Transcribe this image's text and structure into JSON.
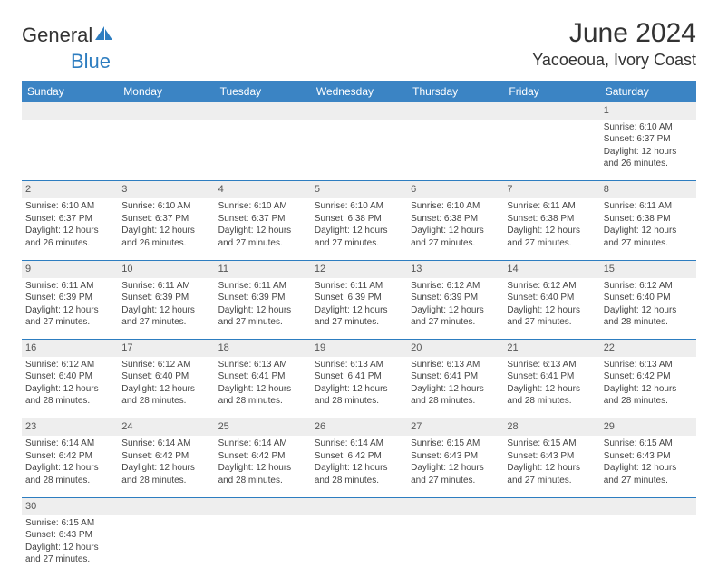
{
  "brand": {
    "part1": "General",
    "part2": "Blue"
  },
  "title": "June 2024",
  "location": "Yacoeoua, Ivory Coast",
  "colors": {
    "header_bg": "#3b84c4",
    "header_text": "#ffffff",
    "daynum_bg": "#eeeeee",
    "border": "#2d7dc0"
  },
  "dayNames": [
    "Sunday",
    "Monday",
    "Tuesday",
    "Wednesday",
    "Thursday",
    "Friday",
    "Saturday"
  ],
  "weeks": [
    [
      null,
      null,
      null,
      null,
      null,
      null,
      {
        "n": "1",
        "sr": "Sunrise: 6:10 AM",
        "ss": "Sunset: 6:37 PM",
        "d1": "Daylight: 12 hours",
        "d2": "and 26 minutes."
      }
    ],
    [
      {
        "n": "2",
        "sr": "Sunrise: 6:10 AM",
        "ss": "Sunset: 6:37 PM",
        "d1": "Daylight: 12 hours",
        "d2": "and 26 minutes."
      },
      {
        "n": "3",
        "sr": "Sunrise: 6:10 AM",
        "ss": "Sunset: 6:37 PM",
        "d1": "Daylight: 12 hours",
        "d2": "and 26 minutes."
      },
      {
        "n": "4",
        "sr": "Sunrise: 6:10 AM",
        "ss": "Sunset: 6:37 PM",
        "d1": "Daylight: 12 hours",
        "d2": "and 27 minutes."
      },
      {
        "n": "5",
        "sr": "Sunrise: 6:10 AM",
        "ss": "Sunset: 6:38 PM",
        "d1": "Daylight: 12 hours",
        "d2": "and 27 minutes."
      },
      {
        "n": "6",
        "sr": "Sunrise: 6:10 AM",
        "ss": "Sunset: 6:38 PM",
        "d1": "Daylight: 12 hours",
        "d2": "and 27 minutes."
      },
      {
        "n": "7",
        "sr": "Sunrise: 6:11 AM",
        "ss": "Sunset: 6:38 PM",
        "d1": "Daylight: 12 hours",
        "d2": "and 27 minutes."
      },
      {
        "n": "8",
        "sr": "Sunrise: 6:11 AM",
        "ss": "Sunset: 6:38 PM",
        "d1": "Daylight: 12 hours",
        "d2": "and 27 minutes."
      }
    ],
    [
      {
        "n": "9",
        "sr": "Sunrise: 6:11 AM",
        "ss": "Sunset: 6:39 PM",
        "d1": "Daylight: 12 hours",
        "d2": "and 27 minutes."
      },
      {
        "n": "10",
        "sr": "Sunrise: 6:11 AM",
        "ss": "Sunset: 6:39 PM",
        "d1": "Daylight: 12 hours",
        "d2": "and 27 minutes."
      },
      {
        "n": "11",
        "sr": "Sunrise: 6:11 AM",
        "ss": "Sunset: 6:39 PM",
        "d1": "Daylight: 12 hours",
        "d2": "and 27 minutes."
      },
      {
        "n": "12",
        "sr": "Sunrise: 6:11 AM",
        "ss": "Sunset: 6:39 PM",
        "d1": "Daylight: 12 hours",
        "d2": "and 27 minutes."
      },
      {
        "n": "13",
        "sr": "Sunrise: 6:12 AM",
        "ss": "Sunset: 6:39 PM",
        "d1": "Daylight: 12 hours",
        "d2": "and 27 minutes."
      },
      {
        "n": "14",
        "sr": "Sunrise: 6:12 AM",
        "ss": "Sunset: 6:40 PM",
        "d1": "Daylight: 12 hours",
        "d2": "and 27 minutes."
      },
      {
        "n": "15",
        "sr": "Sunrise: 6:12 AM",
        "ss": "Sunset: 6:40 PM",
        "d1": "Daylight: 12 hours",
        "d2": "and 28 minutes."
      }
    ],
    [
      {
        "n": "16",
        "sr": "Sunrise: 6:12 AM",
        "ss": "Sunset: 6:40 PM",
        "d1": "Daylight: 12 hours",
        "d2": "and 28 minutes."
      },
      {
        "n": "17",
        "sr": "Sunrise: 6:12 AM",
        "ss": "Sunset: 6:40 PM",
        "d1": "Daylight: 12 hours",
        "d2": "and 28 minutes."
      },
      {
        "n": "18",
        "sr": "Sunrise: 6:13 AM",
        "ss": "Sunset: 6:41 PM",
        "d1": "Daylight: 12 hours",
        "d2": "and 28 minutes."
      },
      {
        "n": "19",
        "sr": "Sunrise: 6:13 AM",
        "ss": "Sunset: 6:41 PM",
        "d1": "Daylight: 12 hours",
        "d2": "and 28 minutes."
      },
      {
        "n": "20",
        "sr": "Sunrise: 6:13 AM",
        "ss": "Sunset: 6:41 PM",
        "d1": "Daylight: 12 hours",
        "d2": "and 28 minutes."
      },
      {
        "n": "21",
        "sr": "Sunrise: 6:13 AM",
        "ss": "Sunset: 6:41 PM",
        "d1": "Daylight: 12 hours",
        "d2": "and 28 minutes."
      },
      {
        "n": "22",
        "sr": "Sunrise: 6:13 AM",
        "ss": "Sunset: 6:42 PM",
        "d1": "Daylight: 12 hours",
        "d2": "and 28 minutes."
      }
    ],
    [
      {
        "n": "23",
        "sr": "Sunrise: 6:14 AM",
        "ss": "Sunset: 6:42 PM",
        "d1": "Daylight: 12 hours",
        "d2": "and 28 minutes."
      },
      {
        "n": "24",
        "sr": "Sunrise: 6:14 AM",
        "ss": "Sunset: 6:42 PM",
        "d1": "Daylight: 12 hours",
        "d2": "and 28 minutes."
      },
      {
        "n": "25",
        "sr": "Sunrise: 6:14 AM",
        "ss": "Sunset: 6:42 PM",
        "d1": "Daylight: 12 hours",
        "d2": "and 28 minutes."
      },
      {
        "n": "26",
        "sr": "Sunrise: 6:14 AM",
        "ss": "Sunset: 6:42 PM",
        "d1": "Daylight: 12 hours",
        "d2": "and 28 minutes."
      },
      {
        "n": "27",
        "sr": "Sunrise: 6:15 AM",
        "ss": "Sunset: 6:43 PM",
        "d1": "Daylight: 12 hours",
        "d2": "and 27 minutes."
      },
      {
        "n": "28",
        "sr": "Sunrise: 6:15 AM",
        "ss": "Sunset: 6:43 PM",
        "d1": "Daylight: 12 hours",
        "d2": "and 27 minutes."
      },
      {
        "n": "29",
        "sr": "Sunrise: 6:15 AM",
        "ss": "Sunset: 6:43 PM",
        "d1": "Daylight: 12 hours",
        "d2": "and 27 minutes."
      }
    ],
    [
      {
        "n": "30",
        "sr": "Sunrise: 6:15 AM",
        "ss": "Sunset: 6:43 PM",
        "d1": "Daylight: 12 hours",
        "d2": "and 27 minutes."
      },
      null,
      null,
      null,
      null,
      null,
      null
    ]
  ]
}
